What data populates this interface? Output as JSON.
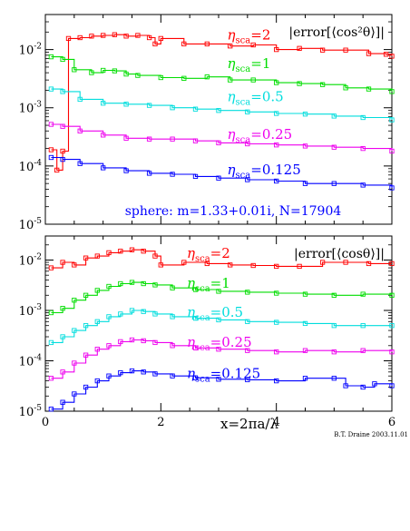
{
  "credit": "B.T. Draine 2003.11.01",
  "xlabel": "x=2πa/λ",
  "x_ticks": [
    "0",
    "2",
    "4",
    "6"
  ],
  "colors": {
    "2": "#ff0000",
    "1": "#00dd00",
    "0.5": "#00dddd",
    "0.25": "#ee00ee",
    "0.125": "#0000ff"
  },
  "chart_data": [
    {
      "type": "line",
      "panel": "top",
      "title": "|error[⟨cos²θ⟩]|",
      "annotation": "sphere: m=1.33+0.01i, N=17904",
      "y_scale": "log",
      "xlim": [
        0,
        6
      ],
      "ylim": [
        1e-05,
        0.04
      ],
      "y_ticks": [
        {
          "base": "10",
          "exp": "-5",
          "value": 1e-05
        },
        {
          "base": "10",
          "exp": "-4",
          "value": 0.0001
        },
        {
          "base": "10",
          "exp": "-3",
          "value": 0.001
        },
        {
          "base": "10",
          "exp": "-2",
          "value": 0.01
        }
      ],
      "series": [
        {
          "name": "η_sca=2",
          "label_main": "η",
          "label_sub": "sca",
          "label_eq": "=2",
          "label_x": 3.15,
          "label_y": 0.015,
          "key": "2",
          "x": [
            0.1,
            0.2,
            0.3,
            0.4,
            0.6,
            0.8,
            1.0,
            1.2,
            1.4,
            1.6,
            1.8,
            1.9,
            2.0,
            2.4,
            2.8,
            3.2,
            3.6,
            4.0,
            4.4,
            4.8,
            5.2,
            5.6,
            5.9,
            6.0
          ],
          "y": [
            0.00019,
            8.5e-05,
            0.00018,
            0.0155,
            0.016,
            0.017,
            0.0175,
            0.018,
            0.017,
            0.0175,
            0.016,
            0.0125,
            0.0155,
            0.0125,
            0.0125,
            0.0115,
            0.012,
            0.01,
            0.0105,
            0.0098,
            0.0098,
            0.0085,
            0.0083,
            0.0077
          ]
        },
        {
          "name": "η_sca=1",
          "label_main": "η",
          "label_sub": "sca",
          "label_eq": "=1",
          "label_x": 3.15,
          "label_y": 0.0048,
          "key": "1",
          "x": [
            0.1,
            0.3,
            0.5,
            0.8,
            1.0,
            1.2,
            1.4,
            1.6,
            2.0,
            2.4,
            2.8,
            3.2,
            3.6,
            4.0,
            4.4,
            4.8,
            5.2,
            5.6,
            6.0
          ],
          "y": [
            0.0075,
            0.0068,
            0.0045,
            0.004,
            0.0044,
            0.0043,
            0.0038,
            0.0036,
            0.0033,
            0.0032,
            0.0034,
            0.003,
            0.003,
            0.0027,
            0.0026,
            0.0025,
            0.0022,
            0.0021,
            0.0019
          ]
        },
        {
          "name": "η_sca=0.5",
          "label_main": "η",
          "label_sub": "sca",
          "label_eq": "=0.5",
          "label_x": 3.15,
          "label_y": 0.0013,
          "key": "0.5",
          "x": [
            0.1,
            0.3,
            0.6,
            1.0,
            1.4,
            1.8,
            2.2,
            2.6,
            3.0,
            3.5,
            4.0,
            4.5,
            5.0,
            5.5,
            6.0
          ],
          "y": [
            0.0021,
            0.0019,
            0.0014,
            0.0012,
            0.00115,
            0.0011,
            0.001,
            0.00095,
            0.0009,
            0.00085,
            0.0008,
            0.00078,
            0.00072,
            0.00068,
            0.00062
          ]
        },
        {
          "name": "η_sca=0.25",
          "label_main": "η",
          "label_sub": "sca",
          "label_eq": "=0.25",
          "label_x": 3.15,
          "label_y": 0.00029,
          "key": "0.25",
          "x": [
            0.1,
            0.3,
            0.6,
            1.0,
            1.4,
            1.8,
            2.2,
            2.6,
            3.0,
            3.5,
            4.0,
            4.5,
            5.0,
            5.5,
            6.0
          ],
          "y": [
            0.00052,
            0.00048,
            0.0004,
            0.00034,
            0.0003,
            0.00029,
            0.00029,
            0.00027,
            0.00025,
            0.00024,
            0.00023,
            0.00022,
            0.00021,
            0.0002,
            0.00018
          ]
        },
        {
          "name": "η_sca=0.125",
          "label_main": "η",
          "label_sub": "sca",
          "label_eq": "=0.125",
          "label_x": 3.15,
          "label_y": 7.2e-05,
          "key": "0.125",
          "x": [
            0.1,
            0.3,
            0.6,
            1.0,
            1.4,
            1.8,
            2.2,
            2.6,
            3.0,
            3.5,
            4.0,
            4.5,
            5.0,
            5.5,
            6.0
          ],
          "y": [
            0.00014,
            0.00013,
            0.00011,
            9.3e-05,
            8.3e-05,
            7.5e-05,
            7.2e-05,
            6.6e-05,
            6.2e-05,
            5.8e-05,
            5.5e-05,
            5e-05,
            5e-05,
            4.7e-05,
            4.2e-05
          ]
        }
      ]
    },
    {
      "type": "line",
      "panel": "bottom",
      "title": "|error[⟨cosθ⟩]|",
      "y_scale": "log",
      "xlim": [
        0,
        6
      ],
      "ylim": [
        1e-05,
        0.03
      ],
      "y_ticks": [
        {
          "base": "10",
          "exp": "-5",
          "value": 1e-05
        },
        {
          "base": "10",
          "exp": "-4",
          "value": 0.0001
        },
        {
          "base": "10",
          "exp": "-3",
          "value": 0.001
        },
        {
          "base": "10",
          "exp": "-2",
          "value": 0.01
        }
      ],
      "series": [
        {
          "name": "η_sca=2",
          "label_main": "η",
          "label_sub": "sca",
          "label_eq": "=2",
          "label_x": 2.45,
          "label_y": 0.011,
          "key": "2",
          "x": [
            0.1,
            0.3,
            0.5,
            0.7,
            0.9,
            1.1,
            1.3,
            1.5,
            1.7,
            1.9,
            2.0,
            2.4,
            2.8,
            3.2,
            3.6,
            4.0,
            4.4,
            4.8,
            5.2,
            5.6,
            6.0
          ],
          "y": [
            0.007,
            0.009,
            0.008,
            0.011,
            0.012,
            0.014,
            0.015,
            0.016,
            0.015,
            0.012,
            0.008,
            0.009,
            0.0085,
            0.008,
            0.0078,
            0.0075,
            0.0075,
            0.009,
            0.009,
            0.0085,
            0.0085
          ]
        },
        {
          "name": "η_sca=1",
          "label_main": "η",
          "label_sub": "sca",
          "label_eq": "=1",
          "label_x": 2.45,
          "label_y": 0.0028,
          "key": "1",
          "x": [
            0.1,
            0.3,
            0.5,
            0.7,
            0.9,
            1.1,
            1.3,
            1.5,
            1.7,
            1.9,
            2.2,
            2.6,
            3.0,
            3.5,
            4.0,
            4.5,
            5.0,
            5.5,
            6.0
          ],
          "y": [
            0.0009,
            0.0011,
            0.0016,
            0.002,
            0.0025,
            0.003,
            0.0034,
            0.0036,
            0.0034,
            0.0032,
            0.0028,
            0.0026,
            0.0024,
            0.0023,
            0.0022,
            0.0021,
            0.002,
            0.0021,
            0.002
          ]
        },
        {
          "name": "η_sca=0.5",
          "label_main": "η",
          "label_sub": "sca",
          "label_eq": "=0.5",
          "label_x": 2.45,
          "label_y": 0.00075,
          "key": "0.5",
          "x": [
            0.1,
            0.3,
            0.5,
            0.7,
            0.9,
            1.1,
            1.3,
            1.5,
            1.7,
            1.9,
            2.2,
            2.6,
            3.0,
            3.5,
            4.0,
            4.5,
            5.0,
            5.5,
            6.0
          ],
          "y": [
            0.00023,
            0.0003,
            0.0004,
            0.0005,
            0.0006,
            0.00075,
            0.00085,
            0.001,
            0.00095,
            0.00085,
            0.00075,
            0.0007,
            0.00065,
            0.0006,
            0.00058,
            0.00055,
            0.0005,
            0.0005,
            0.0005
          ]
        },
        {
          "name": "η_sca=0.25",
          "label_main": "η",
          "label_sub": "sca",
          "label_eq": "=0.25",
          "label_x": 2.45,
          "label_y": 0.00019,
          "key": "0.25",
          "x": [
            0.1,
            0.3,
            0.5,
            0.7,
            0.9,
            1.1,
            1.3,
            1.5,
            1.7,
            1.9,
            2.2,
            2.6,
            3.0,
            3.5,
            4.0,
            4.5,
            5.0,
            5.5,
            6.0
          ],
          "y": [
            4.5e-05,
            6e-05,
            9e-05,
            0.00013,
            0.00017,
            0.0002,
            0.00024,
            0.00026,
            0.00025,
            0.00023,
            0.0002,
            0.00018,
            0.00017,
            0.00016,
            0.00015,
            0.00016,
            0.00015,
            0.00016,
            0.00015
          ]
        },
        {
          "name": "η_sca=0.125",
          "label_main": "η",
          "label_sub": "sca",
          "label_eq": "=0.125",
          "label_x": 2.45,
          "label_y": 4.5e-05,
          "key": "0.125",
          "x": [
            0.1,
            0.3,
            0.5,
            0.7,
            0.9,
            1.1,
            1.3,
            1.5,
            1.7,
            1.9,
            2.2,
            2.6,
            3.0,
            3.5,
            4.0,
            4.5,
            5.0,
            5.2,
            5.5,
            5.7,
            6.0
          ],
          "y": [
            1.1e-05,
            1.5e-05,
            2.2e-05,
            3e-05,
            4e-05,
            5e-05,
            5.8e-05,
            6.3e-05,
            6e-05,
            5.5e-05,
            5e-05,
            4.6e-05,
            4.3e-05,
            4.2e-05,
            4e-05,
            4.5e-05,
            4.5e-05,
            3.2e-05,
            3e-05,
            3.5e-05,
            3.2e-05
          ]
        }
      ]
    }
  ]
}
